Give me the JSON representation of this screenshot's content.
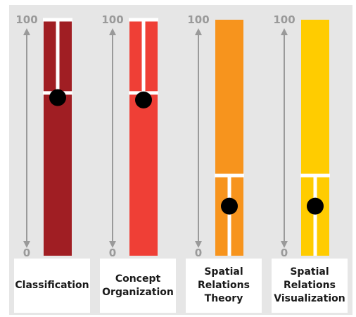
{
  "chart_data": {
    "type": "bar",
    "scale_top_label": "100",
    "scale_bottom_label": "0",
    "ylim": [
      0,
      100
    ],
    "categories": [
      "Classification",
      "Concept\nOrganization",
      "Spatial\nRelations\nTheory",
      "Spatial\nRelations\nVisualization"
    ],
    "values": [
      67,
      66,
      21,
      21
    ],
    "reference_marks": [
      69,
      69,
      34,
      34
    ],
    "colors": [
      "#a01e23",
      "#ef3f36",
      "#f7941d",
      "#ffcc00"
    ],
    "background": "#e6e6e6"
  }
}
